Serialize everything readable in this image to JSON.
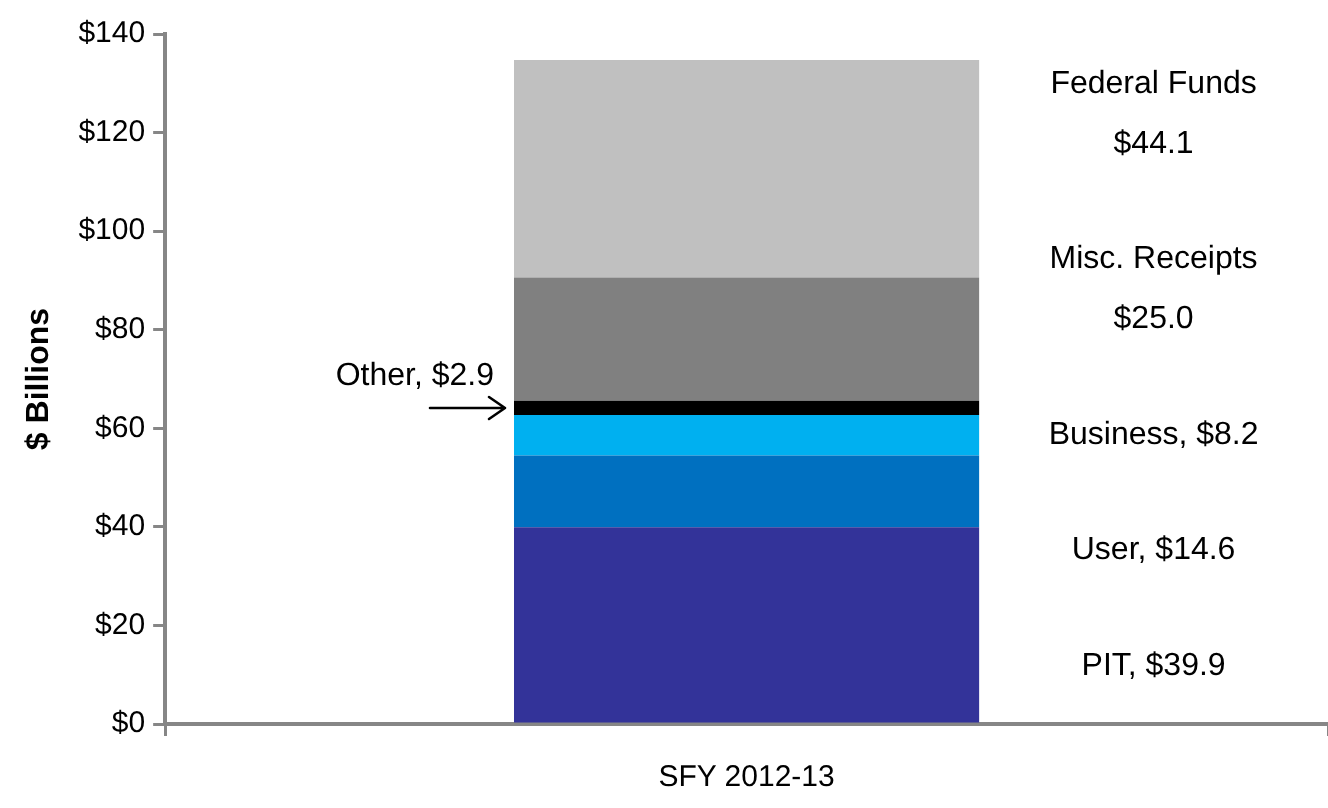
{
  "chart_data": {
    "type": "bar",
    "stacked": true,
    "ylabel": "$ Billions",
    "categories": [
      "SFY 2012-13"
    ],
    "series": [
      {
        "color": "#333399",
        "values": [
          39.9
        ]
      },
      {
        "color": "#0070c0",
        "values": [
          14.6
        ]
      },
      {
        "color": "#00b0f0",
        "values": [
          8.2
        ]
      },
      {
        "color": "#000000",
        "values": [
          2.9
        ],
        "value_labels": [
          "Other, $2.9"
        ]
      },
      {
        "color": "#808080",
        "values": [
          25.0
        ]
      },
      {
        "color": "#c0c0c0",
        "values": [
          44.1
        ]
      }
    ],
    "annotations": [
      "Federal Funds $44.1",
      "Misc. Receipts $25.0",
      "Business, $8.2",
      "User, $14.6",
      "PIT, $39.9"
    ],
    "ylim": [
      0,
      140
    ],
    "yticks": [
      {
        "value": 0,
        "label": "$0"
      },
      {
        "value": 20,
        "label": "$20"
      },
      {
        "value": 40,
        "label": "$40"
      },
      {
        "value": 60,
        "label": "$60"
      },
      {
        "value": 80,
        "label": "$80"
      },
      {
        "value": 100,
        "label": "$100"
      },
      {
        "value": 120,
        "label": "$120"
      },
      {
        "value": 140,
        "label": "$140"
      }
    ],
    "grid": false,
    "legend": false
  }
}
